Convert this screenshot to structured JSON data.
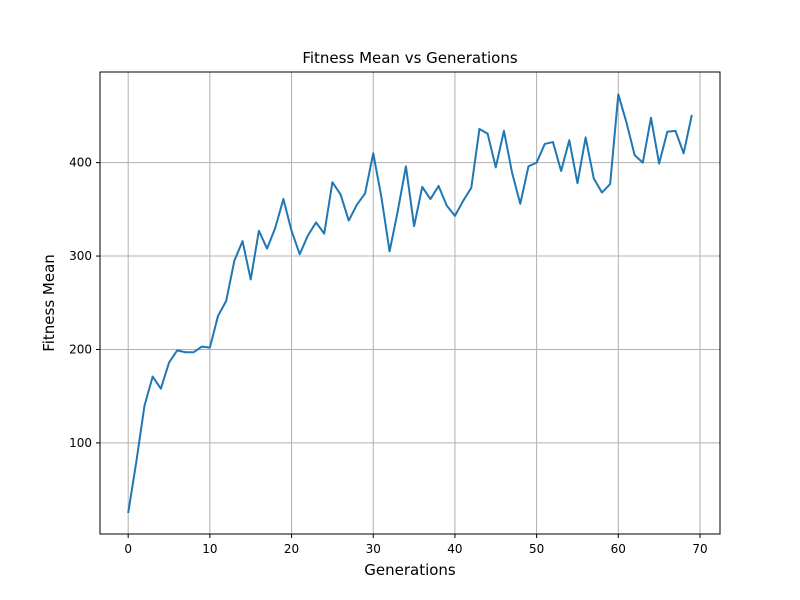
{
  "chart_data": {
    "type": "line",
    "title": "Fitness Mean vs Generations",
    "xlabel": "Generations",
    "ylabel": "Fitness Mean",
    "xlim": [
      -3.45,
      72.45
    ],
    "ylim": [
      2.5,
      497
    ],
    "xticks": [
      0,
      10,
      20,
      30,
      40,
      50,
      60,
      70
    ],
    "yticks": [
      100,
      200,
      300,
      400
    ],
    "grid": true,
    "series": [
      {
        "color": "#1f77b4",
        "x": [
          0,
          1,
          2,
          3,
          4,
          5,
          6,
          7,
          8,
          9,
          10,
          11,
          12,
          13,
          14,
          15,
          16,
          17,
          18,
          19,
          20,
          21,
          22,
          23,
          24,
          25,
          26,
          27,
          28,
          29,
          30,
          31,
          32,
          33,
          34,
          35,
          36,
          37,
          38,
          39,
          40,
          41,
          42,
          43,
          44,
          45,
          46,
          47,
          48,
          49,
          50,
          51,
          52,
          53,
          54,
          55,
          56,
          57,
          58,
          59,
          60,
          61,
          62,
          63,
          64,
          65,
          66,
          67,
          68,
          69
        ],
        "values": [
          25,
          80,
          140,
          171,
          158,
          186,
          199,
          197,
          197,
          203,
          202,
          236,
          252,
          295,
          316,
          275,
          327,
          308,
          330,
          361,
          327,
          302,
          322,
          336,
          324,
          379,
          366,
          338,
          355,
          367,
          410,
          363,
          305,
          348,
          396,
          332,
          374,
          361,
          375,
          354,
          343,
          359,
          373,
          436,
          431,
          395,
          434,
          389,
          356,
          396,
          400,
          420,
          422,
          391,
          424,
          378,
          427,
          383,
          368,
          377,
          473,
          443,
          408,
          400,
          448,
          399,
          433,
          434,
          410,
          451
        ]
      }
    ]
  }
}
